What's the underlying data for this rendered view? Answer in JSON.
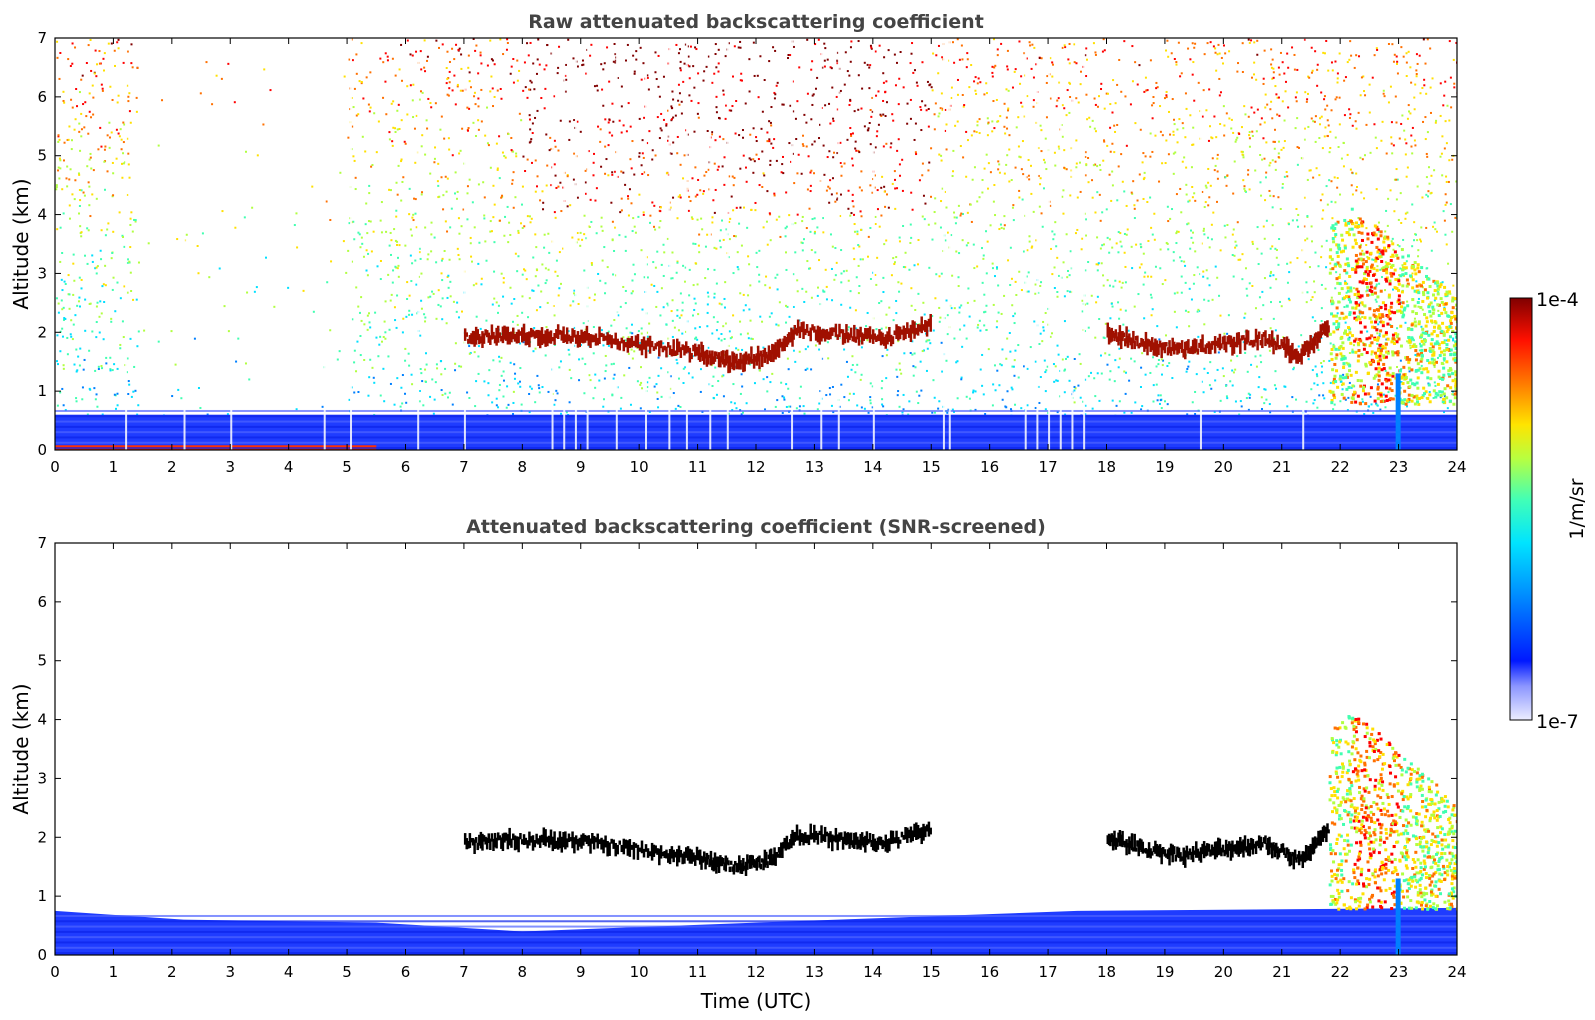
{
  "chart_data": [
    {
      "type": "heatmap",
      "title": "Raw attenuated backscattering coefficient",
      "xlabel": "",
      "ylabel": "Altitude (km)",
      "xlim": [
        0,
        24
      ],
      "ylim": [
        0,
        7
      ],
      "x_ticks": [
        "0",
        "1",
        "2",
        "3",
        "4",
        "5",
        "6",
        "7",
        "8",
        "9",
        "10",
        "11",
        "12",
        "13",
        "14",
        "15",
        "16",
        "17",
        "18",
        "19",
        "20",
        "21",
        "22",
        "23",
        "24"
      ],
      "y_ticks": [
        "0",
        "1",
        "2",
        "3",
        "4",
        "5",
        "6",
        "7"
      ],
      "grid": false,
      "features": {
        "boundary_layer": {
          "top_km": 0.6
        },
        "surface_layer": {
          "x_range": [
            0,
            5.5
          ],
          "top_km": 0.08
        },
        "cloud_layer": [
          {
            "x": 7.0,
            "y": 1.9
          },
          {
            "x": 7.7,
            "y": 1.95
          },
          {
            "x": 8.5,
            "y": 1.95
          },
          {
            "x": 9.3,
            "y": 1.9
          },
          {
            "x": 10.2,
            "y": 1.75
          },
          {
            "x": 11.0,
            "y": 1.65
          },
          {
            "x": 11.6,
            "y": 1.5
          },
          {
            "x": 12.2,
            "y": 1.6
          },
          {
            "x": 12.7,
            "y": 2.05
          },
          {
            "x": 13.5,
            "y": 1.95
          },
          {
            "x": 14.2,
            "y": 1.9
          },
          {
            "x": 15.0,
            "y": 2.15
          },
          {
            "x": 18.0,
            "y": 2.0
          },
          {
            "x": 18.6,
            "y": 1.8
          },
          {
            "x": 19.3,
            "y": 1.7
          },
          {
            "x": 20.0,
            "y": 1.8
          },
          {
            "x": 20.7,
            "y": 1.9
          },
          {
            "x": 21.3,
            "y": 1.6
          },
          {
            "x": 21.8,
            "y": 2.15
          }
        ],
        "precipitation_region": {
          "x_range": [
            21.8,
            24
          ],
          "y_range": [
            0.8,
            4.2
          ]
        },
        "noise_gap": {
          "x_range": [
            1.4,
            5.0
          ],
          "y_range": [
            0.6,
            7
          ]
        }
      }
    },
    {
      "type": "heatmap",
      "title": "Attenuated backscattering coefficient (SNR-screened)",
      "xlabel": "Time (UTC)",
      "ylabel": "Altitude (km)",
      "xlim": [
        0,
        24
      ],
      "ylim": [
        0,
        7
      ],
      "x_ticks": [
        "0",
        "1",
        "2",
        "3",
        "4",
        "5",
        "6",
        "7",
        "8",
        "9",
        "10",
        "11",
        "12",
        "13",
        "14",
        "15",
        "16",
        "17",
        "18",
        "19",
        "20",
        "21",
        "22",
        "23",
        "24"
      ],
      "y_ticks": [
        "0",
        "1",
        "2",
        "3",
        "4",
        "5",
        "6",
        "7"
      ],
      "grid": false,
      "features": {
        "boundary_layer": [
          {
            "x": 0,
            "top_km": 0.75
          },
          {
            "x": 2.2,
            "top_km": 0.6
          },
          {
            "x": 5.5,
            "top_km": 0.55
          },
          {
            "x": 8.0,
            "top_km": 0.4
          },
          {
            "x": 12.0,
            "top_km": 0.55
          },
          {
            "x": 17.5,
            "top_km": 0.75
          },
          {
            "x": 24,
            "top_km": 0.8
          }
        ],
        "cloud_layer_color": "#000000",
        "precipitation_region": {
          "x_range": [
            21.8,
            24
          ],
          "y_range": [
            0.8,
            4.2
          ]
        }
      }
    }
  ],
  "colorbar": {
    "label": "1/m/sr",
    "max_label": "1e-4",
    "min_label": "1e-7",
    "scale": "log",
    "range": [
      1e-07,
      0.0001
    ],
    "colormap": [
      "#e6e8ff",
      "#9fa8ff",
      "#0018ff",
      "#0080ff",
      "#00e0ff",
      "#40ffb0",
      "#b0ff40",
      "#ffe000",
      "#ff7000",
      "#ff0000",
      "#800000"
    ]
  }
}
